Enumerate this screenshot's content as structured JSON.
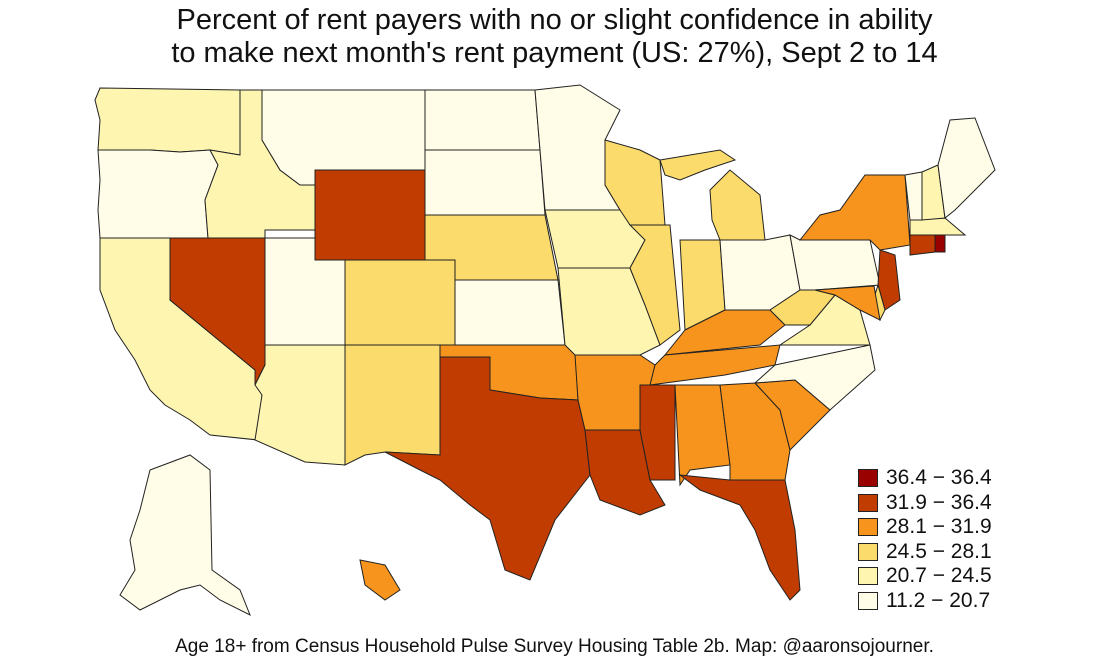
{
  "title": {
    "line1": "Percent of rent payers with no or slight confidence in ability",
    "line2": "to make next month's rent payment (US: 27%), Sept 2 to 14"
  },
  "legend": [
    {
      "label": "36.4 − 36.4",
      "color": "#990000"
    },
    {
      "label": "31.9 − 36.4",
      "color": "#c13c00"
    },
    {
      "label": "28.1 − 31.9",
      "color": "#f7941d"
    },
    {
      "label": "24.5 − 28.1",
      "color": "#fbdb6b"
    },
    {
      "label": "20.7 − 24.5",
      "color": "#fdf5b0"
    },
    {
      "label": "11.2 − 20.7",
      "color": "#fffde8"
    }
  ],
  "states": {
    "WA": 4,
    "OR": 5,
    "CA": 4,
    "NV": 1,
    "ID": 4,
    "MT": 5,
    "WY": 1,
    "UT": 5,
    "AZ": 4,
    "CO": 3,
    "NM": 3,
    "ND": 5,
    "SD": 5,
    "NE": 3,
    "KS": 5,
    "OK": 2,
    "TX": 1,
    "MN": 5,
    "IA": 4,
    "MO": 4,
    "AR": 2,
    "LA": 1,
    "WI": 3,
    "IL": 3,
    "MI": 3,
    "IN": 3,
    "OH": 5,
    "KY": 2,
    "TN": 2,
    "MS": 1,
    "AL": 2,
    "GA": 2,
    "FL": 1,
    "SC": 2,
    "NC": 5,
    "VA": 4,
    "WV": 3,
    "PA": 5,
    "NY": 2,
    "ME": 5,
    "VT": 5,
    "NH": 4,
    "MA": 4,
    "RI": 0,
    "CT": 1,
    "NJ": 1,
    "DE": 3,
    "MD": 2,
    "AK": 5,
    "HI": 2
  },
  "caption": "Age 18+ from Census Household Pulse Survey Housing Table 2b. Map: @aaronsojourner."
}
